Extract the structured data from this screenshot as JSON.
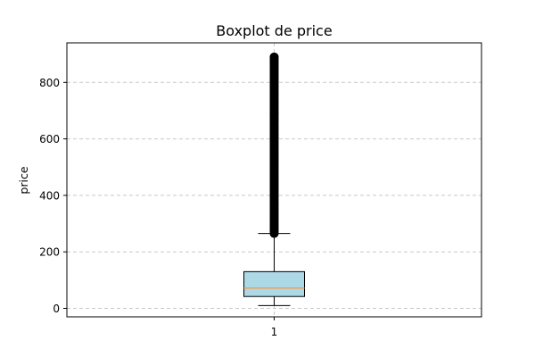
{
  "chart_data": {
    "type": "boxplot",
    "title": "Boxplot de price",
    "xlabel": "",
    "ylabel": "price",
    "categories": [
      "1"
    ],
    "yticks": [
      0,
      200,
      400,
      600,
      800
    ],
    "ylim": [
      -30,
      940
    ],
    "grid": "y",
    "box": {
      "whisker_low": 10,
      "q1": 42,
      "median": 72,
      "q3": 130,
      "whisker_high": 265,
      "outliers_from": 265,
      "outliers_to": 890
    },
    "colors": {
      "box_fill": "#add8e6",
      "median": "#f0a050",
      "outlier": "#000000"
    }
  }
}
